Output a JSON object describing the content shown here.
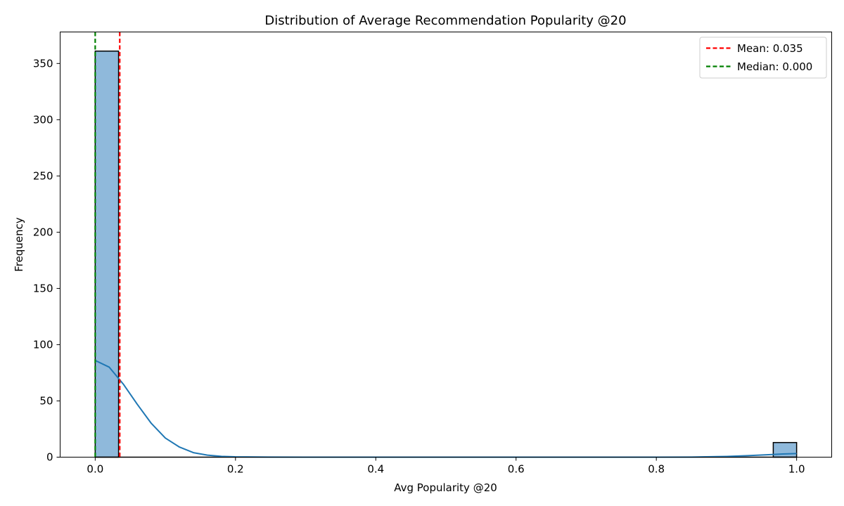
{
  "chart_data": {
    "type": "histogram",
    "title": "Distribution of Average Recommendation Popularity @20",
    "xlabel": "Avg Popularity @20",
    "ylabel": "Frequency",
    "xlim": [
      -0.05,
      1.05
    ],
    "ylim": [
      0,
      378
    ],
    "xticks": [
      0.0,
      0.2,
      0.4,
      0.6,
      0.8,
      1.0
    ],
    "xtick_labels": [
      "0.0",
      "0.2",
      "0.4",
      "0.6",
      "0.8",
      "1.0"
    ],
    "yticks": [
      0,
      50,
      100,
      150,
      200,
      250,
      300,
      350
    ],
    "ytick_labels": [
      "0",
      "50",
      "100",
      "150",
      "200",
      "250",
      "300",
      "350"
    ],
    "bin_count": 30,
    "bin_range": [
      0.0,
      1.0
    ],
    "bins": [
      {
        "x0": 0.0,
        "x1": 0.0333,
        "count": 361
      },
      {
        "x0": 0.9667,
        "x1": 1.0,
        "count": 13
      }
    ],
    "kde": {
      "x": [
        0.0,
        0.02,
        0.04,
        0.06,
        0.08,
        0.1,
        0.12,
        0.14,
        0.16,
        0.18,
        0.2,
        0.25,
        0.3,
        0.4,
        0.5,
        0.6,
        0.7,
        0.8,
        0.85,
        0.9,
        0.93,
        0.96,
        0.98,
        1.0
      ],
      "y": [
        86,
        80,
        65,
        47,
        30,
        17,
        9,
        4,
        1.8,
        0.7,
        0.3,
        0.05,
        0,
        0,
        0,
        0,
        0,
        0,
        0.1,
        0.6,
        1.3,
        2.2,
        2.8,
        3.2
      ]
    },
    "reference_lines": [
      {
        "label": "Mean: 0.035",
        "x": 0.035,
        "color": "#ff0000",
        "style": "dashed"
      },
      {
        "label": "Median: 0.000",
        "x": 0.0,
        "color": "#008000",
        "style": "dashed"
      }
    ],
    "colors": {
      "bar_fill": "#8fb9db",
      "bar_edge": "#000000",
      "kde_line": "#1f77b4"
    },
    "legend_position": "top-right",
    "grid": false
  }
}
